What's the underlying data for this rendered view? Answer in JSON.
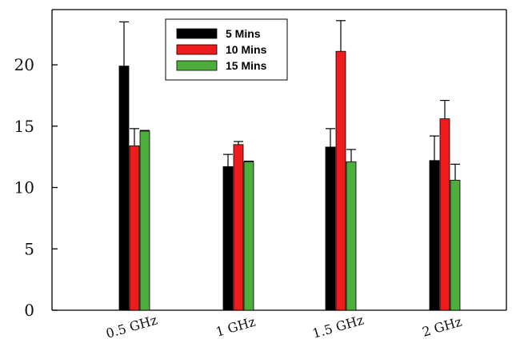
{
  "chart_data": {
    "type": "bar",
    "title": "",
    "xlabel": "",
    "ylabel": "",
    "categories": [
      "0.5 GHz",
      "1 GHz",
      "1.5 GHz",
      "2 GHz"
    ],
    "ylim": [
      0,
      24.5
    ],
    "yticks": [
      0,
      5,
      10,
      15,
      20
    ],
    "series": [
      {
        "name": "5 Mins",
        "color": "#000000",
        "values": [
          19.9,
          11.7,
          13.3,
          12.2
        ],
        "errors": [
          3.6,
          1.0,
          1.5,
          2.0
        ]
      },
      {
        "name": "10 Mins",
        "color": "#ee1c1c",
        "values": [
          13.4,
          13.5,
          21.1,
          15.6
        ],
        "errors": [
          1.4,
          0.25,
          2.5,
          1.5
        ]
      },
      {
        "name": "15 Mins",
        "color": "#4caf3c",
        "values": [
          14.6,
          12.1,
          12.1,
          10.6
        ],
        "errors": [
          0.05,
          0.05,
          1.0,
          1.3
        ]
      }
    ],
    "legend": {
      "position": "top-center",
      "entries": [
        "5 Mins",
        "10 Mins",
        "15 Mins"
      ]
    },
    "grid": false,
    "error_bars": "upper"
  }
}
